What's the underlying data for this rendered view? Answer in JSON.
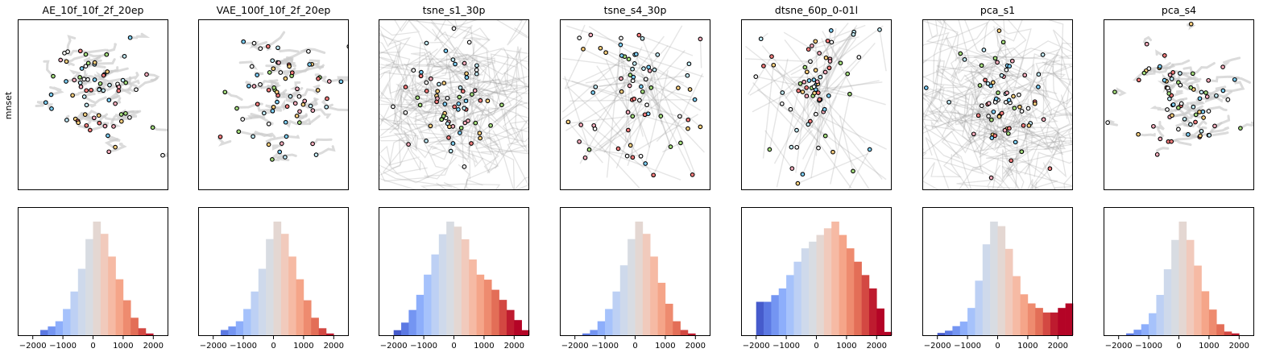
{
  "chart_data": {
    "type": "scatter+histogram grid",
    "row_labels": [
      "mnset",
      ""
    ],
    "histogram": {
      "type": "bar",
      "xlim": [
        -2500,
        2500
      ],
      "xticks": [
        -2000,
        -1000,
        0,
        1000,
        2000
      ],
      "xtick_labels": [
        "−2000",
        "−1000",
        "0",
        "1000",
        "2000"
      ],
      "bin_width": 250,
      "bin_starts": [
        -2500,
        -2250,
        -2000,
        -1750,
        -1500,
        -1250,
        -1000,
        -750,
        -500,
        -250,
        0,
        250,
        500,
        750,
        1000,
        1250,
        1500,
        1750,
        2000,
        2250
      ],
      "colormap": "coolwarm",
      "color_stops": [
        "#3b4cc0",
        "#6788ee",
        "#9abbff",
        "#c9d7f0",
        "#dddddd",
        "#f7c4b1",
        "#f49a7b",
        "#dd5f4b",
        "#b40426"
      ]
    },
    "scatter_marker": {
      "edge_color": "#000000",
      "fill_colors": [
        "#ff7f7f",
        "#ffd27f",
        "#a6e07f",
        "#7fd3ff",
        "#ffffff",
        "#ffb0c0",
        "#c6f0ff"
      ],
      "trail_color": "#999999"
    },
    "panels": [
      {
        "title": "AE_10f_10f_2f_20ep",
        "trail_style": "local",
        "hist": [
          0,
          0,
          0,
          3,
          5,
          8,
          15,
          25,
          38,
          55,
          65,
          58,
          45,
          32,
          20,
          10,
          4,
          1,
          0,
          0
        ]
      },
      {
        "title": "VAE_100f_10f_2f_20ep",
        "trail_style": "local",
        "hist": [
          0,
          0,
          0,
          3,
          5,
          8,
          15,
          25,
          38,
          55,
          65,
          58,
          45,
          32,
          20,
          10,
          4,
          1,
          0,
          0
        ]
      },
      {
        "title": "tsne_s1_30p",
        "trail_style": "dense",
        "hist": [
          0,
          0,
          2,
          5,
          10,
          16,
          24,
          32,
          40,
          45,
          43,
          38,
          30,
          24,
          22,
          18,
          14,
          10,
          6,
          2
        ]
      },
      {
        "title": "tsne_s4_30p",
        "trail_style": "lines",
        "hist": [
          0,
          0,
          0,
          1,
          3,
          8,
          15,
          25,
          40,
          55,
          65,
          58,
          45,
          30,
          18,
          8,
          3,
          1,
          0,
          0
        ]
      },
      {
        "title": "dtsne_60p_0-01l",
        "trail_style": "lines",
        "hist": [
          0,
          0,
          10,
          10,
          12,
          14,
          18,
          22,
          26,
          28,
          30,
          32,
          34,
          30,
          26,
          22,
          18,
          14,
          8,
          1
        ]
      },
      {
        "title": "pca_s1",
        "trail_style": "dense",
        "hist": [
          0,
          0,
          1,
          2,
          4,
          6,
          12,
          24,
          40,
          50,
          48,
          38,
          26,
          18,
          14,
          12,
          10,
          10,
          12,
          14
        ]
      },
      {
        "title": "pca_s4",
        "trail_style": "local",
        "hist": [
          0,
          0,
          0,
          1,
          3,
          6,
          12,
          22,
          36,
          52,
          62,
          52,
          38,
          24,
          14,
          6,
          2,
          1,
          0,
          0
        ]
      }
    ]
  }
}
